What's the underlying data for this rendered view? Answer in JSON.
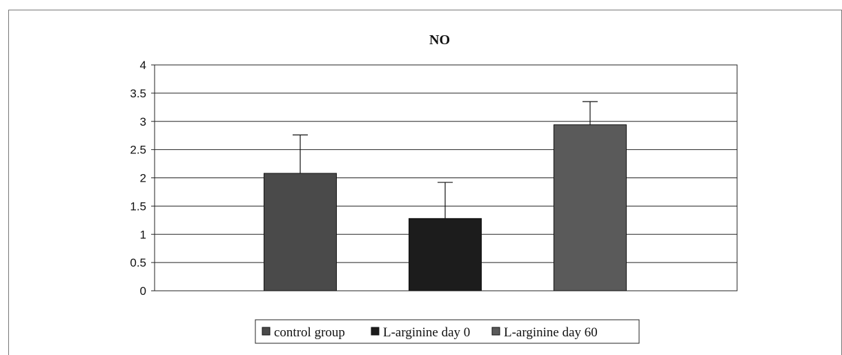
{
  "chart_data": {
    "type": "bar",
    "title": "NO",
    "xlabel": "",
    "ylabel": "",
    "ylim": [
      0,
      4
    ],
    "yticks": [
      "0",
      "0.5",
      "1",
      "1.5",
      "2",
      "2.5",
      "3",
      "3.5",
      "4"
    ],
    "grid": true,
    "legend_position": "bottom",
    "series": [
      {
        "name": "control group",
        "value": 2.08,
        "error": 0.68,
        "color": "#4a4a4a"
      },
      {
        "name": "L-arginine day 0",
        "value": 1.28,
        "error": 0.64,
        "color": "#1c1c1c"
      },
      {
        "name": "L-arginine day 60",
        "value": 2.94,
        "error": 0.41,
        "color": "#5a5a5a"
      }
    ]
  }
}
